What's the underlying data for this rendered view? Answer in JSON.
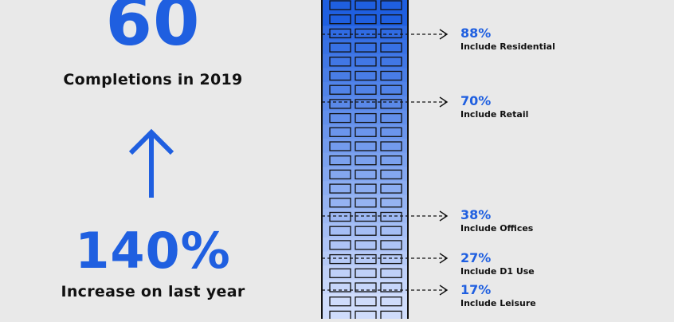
{
  "headline": {
    "completions_value": "60",
    "completions_label": "Completions in 2019",
    "increase_value": "140%",
    "increase_label": "Increase on last year"
  },
  "icons": {
    "arrow": "arrow-up-icon"
  },
  "colors": {
    "accent": "#1f5fe0",
    "building_top": "#1f5fe0",
    "building_bottom": "#cfdcfb",
    "background": "#e9e9e9",
    "text": "#111111"
  },
  "stats": [
    {
      "percent": "88%",
      "label": "Include Residential",
      "value": 88
    },
    {
      "percent": "70%",
      "label": "Include Retail",
      "value": 70
    },
    {
      "percent": "38%",
      "label": "Include Offices",
      "value": 38
    },
    {
      "percent": "27%",
      "label": "Include D1 Use",
      "value": 27
    },
    {
      "percent": "17%",
      "label": "Include Leisure",
      "value": 17
    }
  ]
}
